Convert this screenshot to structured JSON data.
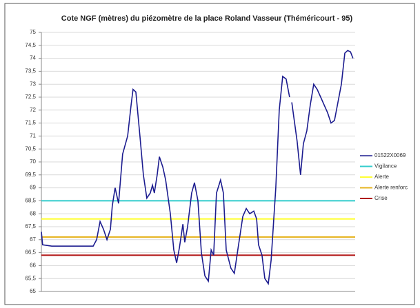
{
  "chart_data": {
    "type": "line",
    "title": "Cote NGF (mètres) du piézomètre de la place Roland Vasseur (Théméricourt - 95)",
    "x": [
      2005.0,
      2005.04,
      2005.33,
      2006.54,
      2006.65,
      2006.76,
      2006.87,
      2006.98,
      2007.09,
      2007.2,
      2007.26,
      2007.35,
      2007.46,
      2007.59,
      2007.75,
      2007.86,
      2007.92,
      2008.01,
      2008.14,
      2008.25,
      2008.36,
      2008.47,
      2008.54,
      2008.6,
      2008.69,
      2008.76,
      2008.87,
      2008.96,
      2009.11,
      2009.22,
      2009.31,
      2009.4,
      2009.51,
      2009.57,
      2009.66,
      2009.79,
      2009.88,
      2009.99,
      2010.1,
      2010.21,
      2010.32,
      2010.41,
      2010.49,
      2010.58,
      2010.71,
      2010.8,
      2010.89,
      2011.04,
      2011.15,
      2011.26,
      2011.42,
      2011.53,
      2011.64,
      2011.77,
      2011.86,
      2011.92,
      2012.03,
      2012.12,
      2012.23,
      2012.32,
      2012.47,
      2012.58,
      2012.69,
      2012.8,
      2012.91,
      2012.94,
      2012.98,
      2013.07,
      2013.15,
      2013.26,
      2013.35,
      2013.46,
      2013.57,
      2013.68,
      2013.79,
      2013.9,
      2014.01,
      2014.12,
      2014.23,
      2014.34,
      2014.45,
      2014.56,
      2014.67,
      2014.76,
      2014.85,
      2014.93
    ],
    "series": [
      {
        "name": "01522X0069",
        "color": "#1c1c8f",
        "values": [
          67.3,
          66.8,
          66.75,
          66.75,
          66.75,
          67.0,
          67.7,
          67.4,
          67.0,
          67.4,
          68.3,
          69.0,
          68.4,
          70.3,
          71.0,
          72.2,
          72.8,
          72.7,
          71.0,
          69.5,
          68.6,
          68.8,
          69.1,
          68.8,
          69.5,
          70.2,
          69.8,
          69.3,
          68.0,
          66.6,
          66.1,
          66.7,
          67.6,
          66.9,
          67.5,
          68.8,
          69.2,
          68.5,
          66.5,
          65.6,
          65.4,
          66.6,
          66.4,
          68.8,
          69.3,
          68.8,
          66.6,
          65.9,
          65.7,
          66.6,
          67.9,
          68.2,
          68.0,
          68.1,
          67.8,
          66.8,
          66.4,
          65.5,
          65.3,
          66.2,
          69.0,
          72.0,
          73.3,
          73.2,
          72.5,
          null,
          72.3,
          71.5,
          70.8,
          69.5,
          70.7,
          71.2,
          72.2,
          73.0,
          72.8,
          72.5,
          72.2,
          71.9,
          71.5,
          71.6,
          72.3,
          73.0,
          74.2,
          74.3,
          74.25,
          74.0
        ]
      }
    ],
    "thresholds": [
      {
        "name": "Vigilance",
        "color": "#33cccc",
        "value": 68.5
      },
      {
        "name": "Alerte",
        "color": "#ffff33",
        "value": 67.8
      },
      {
        "name": "Alerte renforc",
        "color": "#e6b422",
        "value": 67.1
      },
      {
        "name": "Crise",
        "color": "#b01010",
        "value": 66.4
      }
    ],
    "xlim": [
      2005,
      2015
    ],
    "ylim": [
      65,
      75
    ],
    "yticks": [
      65,
      {
        "value": 65.5,
        "label": "65,5"
      },
      66,
      {
        "value": 66.5,
        "label": "66,5"
      },
      67,
      {
        "value": 67.5,
        "label": "67,5"
      },
      68,
      {
        "value": 68.5,
        "label": "68,5"
      },
      69,
      {
        "value": 69.5,
        "label": "69,5"
      },
      70,
      {
        "value": 70.5,
        "label": "70,5"
      },
      71,
      {
        "value": 71.5,
        "label": "71,5"
      },
      72,
      {
        "value": 72.5,
        "label": "72,5"
      },
      73,
      {
        "value": 73.5,
        "label": "73,5"
      },
      74,
      {
        "value": 74.5,
        "label": "74,5"
      },
      75
    ],
    "grid": true
  }
}
